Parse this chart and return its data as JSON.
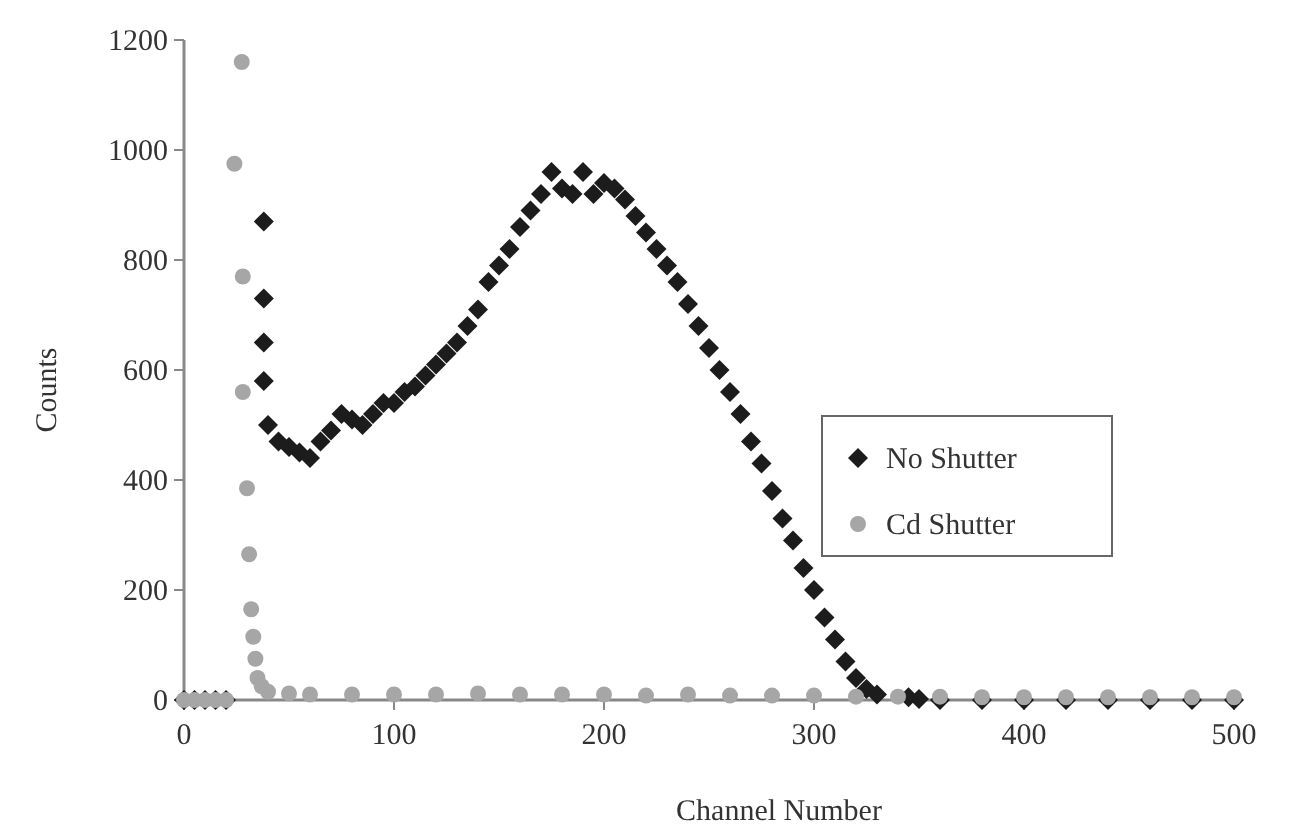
{
  "chart_data": {
    "type": "scatter",
    "xlabel": "Channel Number",
    "ylabel": "Counts",
    "xlim": [
      0,
      500
    ],
    "ylim": [
      0,
      1200
    ],
    "xticks": [
      0,
      100,
      200,
      300,
      400,
      500
    ],
    "yticks": [
      0,
      200,
      400,
      600,
      800,
      1000,
      1200
    ],
    "grid": false,
    "legend": "right",
    "series": [
      {
        "name": "No Shutter",
        "color": "#1c1c1c",
        "marker": "diamond",
        "x": [
          0,
          5,
          10,
          15,
          20,
          38,
          38,
          38,
          38,
          40,
          45,
          50,
          55,
          60,
          65,
          70,
          75,
          80,
          85,
          90,
          95,
          100,
          105,
          110,
          115,
          120,
          125,
          130,
          135,
          140,
          145,
          150,
          155,
          160,
          165,
          170,
          175,
          180,
          185,
          190,
          195,
          200,
          205,
          210,
          215,
          220,
          225,
          230,
          235,
          240,
          245,
          250,
          255,
          260,
          265,
          270,
          275,
          280,
          285,
          290,
          295,
          300,
          305,
          310,
          315,
          320,
          325,
          330,
          345,
          350,
          360,
          380,
          400,
          420,
          440,
          460,
          480,
          500
        ],
        "values": [
          0,
          0,
          0,
          0,
          0,
          870,
          730,
          650,
          580,
          500,
          470,
          460,
          450,
          440,
          470,
          490,
          520,
          510,
          500,
          520,
          540,
          540,
          560,
          570,
          590,
          610,
          630,
          650,
          680,
          710,
          760,
          790,
          820,
          860,
          890,
          920,
          960,
          930,
          920,
          960,
          920,
          940,
          930,
          910,
          880,
          850,
          820,
          790,
          760,
          720,
          680,
          640,
          600,
          560,
          520,
          470,
          430,
          380,
          330,
          290,
          240,
          200,
          150,
          110,
          70,
          40,
          20,
          10,
          5,
          2,
          0,
          0,
          0,
          0,
          0,
          0,
          0,
          0
        ]
      },
      {
        "name": "Cd Shutter",
        "color": "#a6a6a6",
        "marker": "circle",
        "x": [
          0,
          5,
          10,
          15,
          20,
          24,
          27.5,
          28,
          28,
          30,
          31,
          32,
          33,
          34,
          35,
          37,
          40,
          50,
          60,
          80,
          100,
          120,
          140,
          160,
          180,
          200,
          220,
          240,
          260,
          280,
          300,
          320,
          340,
          360,
          380,
          400,
          420,
          440,
          460,
          480,
          500
        ],
        "values": [
          0,
          0,
          0,
          0,
          0,
          975,
          1160,
          770,
          560,
          385,
          265,
          165,
          115,
          75,
          40,
          25,
          15,
          12,
          10,
          10,
          10,
          10,
          12,
          10,
          10,
          10,
          8,
          10,
          8,
          8,
          8,
          6,
          6,
          6,
          5,
          5,
          5,
          5,
          5,
          5,
          5
        ]
      }
    ]
  }
}
